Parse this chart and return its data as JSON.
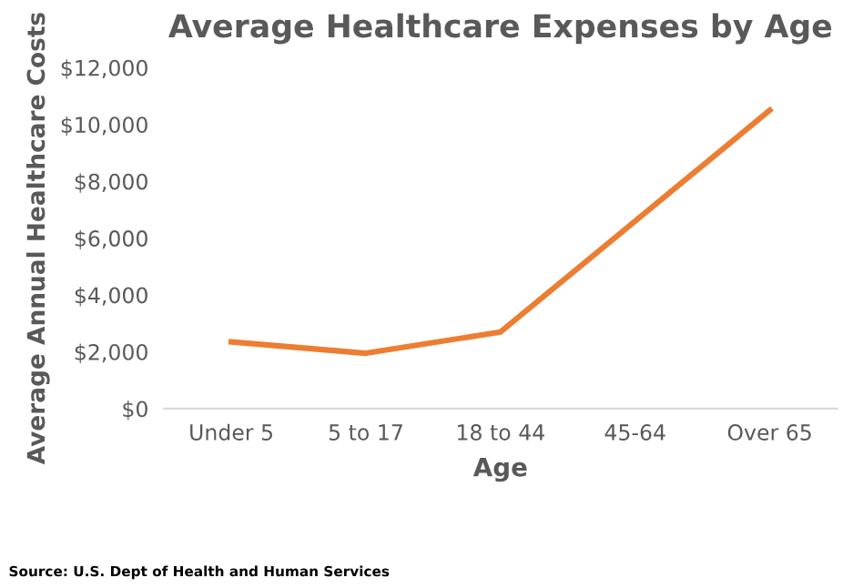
{
  "chart_data": {
    "type": "line",
    "title": "Average Healthcare Expenses by Age",
    "xlabel": "Age",
    "ylabel": "Average Annual Healthcare Costs",
    "categories": [
      "Under 5",
      "5 to 17",
      "18 to 44",
      "45-64",
      "Over 65"
    ],
    "series": [
      {
        "color": "#ed7d31",
        "values": [
          2350,
          1950,
          2700,
          6600,
          10500
        ]
      }
    ],
    "ylim": [
      0,
      12000
    ],
    "yticks": [
      {
        "value": 0,
        "label": "$0"
      },
      {
        "value": 2000,
        "label": "$2,000"
      },
      {
        "value": 4000,
        "label": "$4,000"
      },
      {
        "value": 6000,
        "label": "$6,000"
      },
      {
        "value": 8000,
        "label": "$8,000"
      },
      {
        "value": 10000,
        "label": "$10,000"
      },
      {
        "value": 12000,
        "label": "$12,000"
      }
    ],
    "grid": false,
    "legend": false,
    "marker": "none",
    "line_style": "solid",
    "annotations": [
      "Source: U.S. Dept of Health and Human Services"
    ]
  }
}
